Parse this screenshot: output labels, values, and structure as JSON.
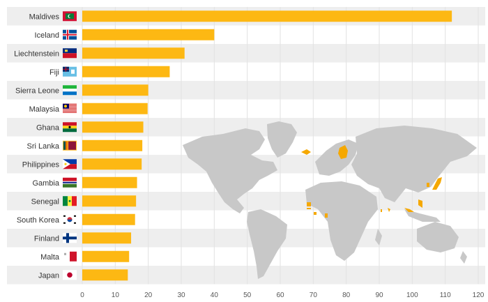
{
  "chart_data": {
    "type": "bar",
    "orientation": "horizontal",
    "title": "",
    "xlabel": "",
    "ylabel": "",
    "categories": [
      "Maldives",
      "Iceland",
      "Liechtenstein",
      "Fiji",
      "Sierra Leone",
      "Malaysia",
      "Ghana",
      "Sri Lanka",
      "Philippines",
      "Gambia",
      "Senegal",
      "South Korea",
      "Finland",
      "Malta",
      "Japan"
    ],
    "values": [
      112,
      40,
      31,
      26.5,
      20,
      19.8,
      18.5,
      18.2,
      18,
      16.6,
      16.3,
      16,
      14.8,
      14.2,
      13.8
    ],
    "xlim": [
      0,
      120
    ],
    "xticks": [
      0,
      10,
      20,
      30,
      40,
      50,
      60,
      70,
      80,
      90,
      100,
      110,
      120
    ],
    "grid": true,
    "bar_color": "#fdb813",
    "background_band_color": "#eeeeee",
    "map_base_color": "#c8c8c8",
    "map_highlight_color": "#f5a800",
    "flags": [
      "maldives-flag",
      "iceland-flag",
      "liechtenstein-flag",
      "fiji-flag",
      "sierra-leone-flag",
      "malaysia-flag",
      "ghana-flag",
      "sri-lanka-flag",
      "philippines-flag",
      "gambia-flag",
      "senegal-flag",
      "south-korea-flag",
      "finland-flag",
      "malta-flag",
      "japan-flag"
    ]
  }
}
